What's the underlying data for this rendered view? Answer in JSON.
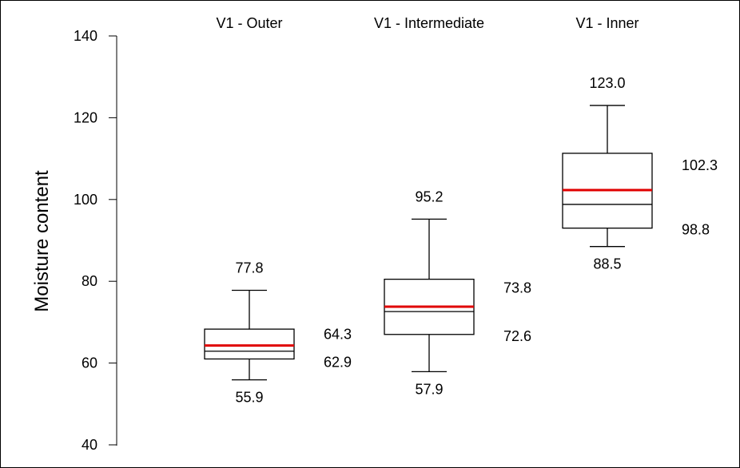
{
  "chart_data": {
    "type": "box",
    "ylabel": "Moisture content",
    "ylim": [
      40,
      140
    ],
    "yticks": [
      40,
      60,
      80,
      100,
      120,
      140
    ],
    "colors": {
      "mean": "#e00000",
      "median": "#000000",
      "box": "#000000"
    },
    "series": [
      {
        "name": "V1 - Outer",
        "min": 55.9,
        "q1": 61.0,
        "median": 62.9,
        "mean": 64.3,
        "q3": 68.3,
        "max": 77.8,
        "labels": {
          "max": "77.8",
          "min": "55.9",
          "mean": "64.3",
          "median": "62.9"
        }
      },
      {
        "name": "V1 - Intermediate",
        "min": 57.9,
        "q1": 67.0,
        "median": 72.6,
        "mean": 73.8,
        "q3": 80.5,
        "max": 95.2,
        "labels": {
          "max": "95.2",
          "min": "57.9",
          "mean": "73.8",
          "median": "72.6"
        }
      },
      {
        "name": "V1 - Inner",
        "min": 88.5,
        "q1": 93.0,
        "median": 98.8,
        "mean": 102.3,
        "q3": 111.3,
        "max": 123.0,
        "labels": {
          "max": "123.0",
          "min": "88.5",
          "mean": "102.3",
          "median": "98.8"
        }
      }
    ]
  }
}
